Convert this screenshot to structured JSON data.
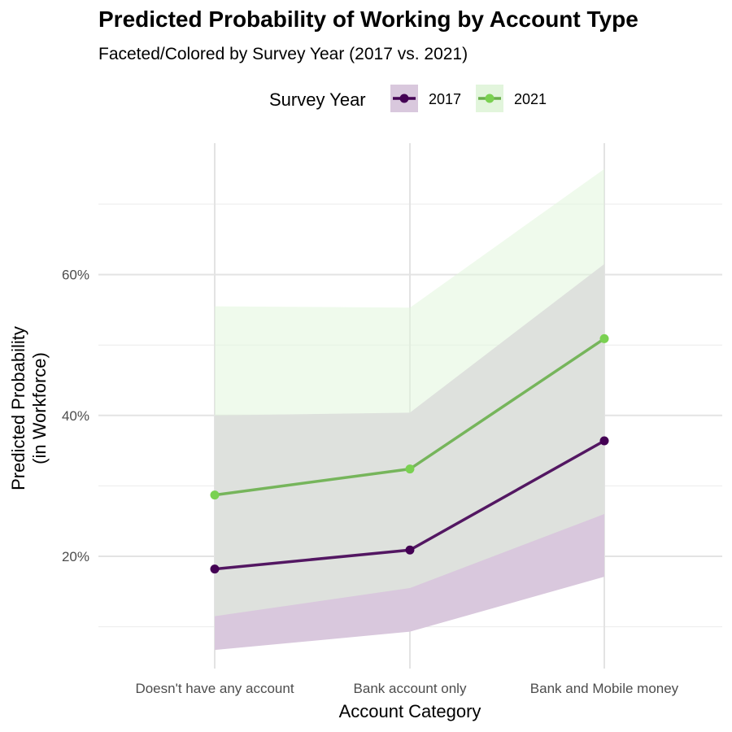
{
  "chart_data": {
    "type": "line",
    "title": "Predicted Probability of Working by Account Type",
    "subtitle": "Faceted/Colored by Survey Year (2017 vs. 2021)",
    "xlabel": "Account Category",
    "ylabel_line1": "Predicted Probability",
    "ylabel_line2": "(in Workforce)",
    "categories": [
      "Doesn't have any account",
      "Bank account only",
      "Bank and Mobile money"
    ],
    "ylim": [
      0.04,
      0.79
    ],
    "y_ticks": [
      0.2,
      0.4,
      0.6
    ],
    "y_tick_labels": [
      "20%",
      "40%",
      "60%"
    ],
    "y_minor_gridlines": [
      0.1,
      0.3,
      0.5,
      0.7
    ],
    "grid": true,
    "legend": {
      "title": "Survey Year",
      "position": "top"
    },
    "series": [
      {
        "name": "2017",
        "color": "#440154",
        "ribbon_color": "#d9c8dd",
        "values": [
          0.182,
          0.209,
          0.364
        ],
        "lower": [
          0.067,
          0.093,
          0.171
        ],
        "upper": [
          0.4,
          0.404,
          0.615
        ]
      },
      {
        "name": "2021",
        "color": "#7ad151",
        "line_color": "#6ab04c",
        "ribbon_color": "#e2f5dc",
        "values": [
          0.287,
          0.324,
          0.509
        ],
        "lower": [
          0.115,
          0.155,
          0.26
        ],
        "upper": [
          0.555,
          0.553,
          0.75
        ]
      }
    ]
  }
}
